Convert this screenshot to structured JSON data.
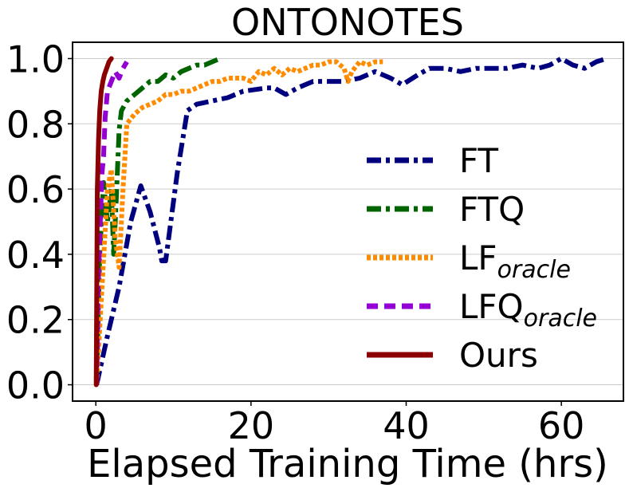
{
  "chart_data": {
    "type": "line",
    "title": "ONTONOTES",
    "xlabel": "Elapsed Training Time (hrs)",
    "ylabel": "",
    "xlim": [
      -3,
      68
    ],
    "ylim": [
      -0.05,
      1.05
    ],
    "x_ticks": [
      0,
      20,
      40,
      60
    ],
    "y_ticks": [
      0.0,
      0.2,
      0.4,
      0.6,
      0.8,
      1.0
    ],
    "x_tick_labels": [
      "0",
      "20",
      "40",
      "60"
    ],
    "y_tick_labels": [
      "0.0",
      "0.2",
      "0.4",
      "0.6",
      "0.8",
      "1.0"
    ],
    "grid": "horizontal",
    "legend_position": "center-right",
    "series": [
      {
        "name": "FT",
        "name_sub": "",
        "color": "#00007f",
        "dash": "dashdot",
        "points": [
          [
            0.1,
            0.0
          ],
          [
            1.5,
            0.15
          ],
          [
            3,
            0.3
          ],
          [
            4.5,
            0.5
          ],
          [
            5.8,
            0.61
          ],
          [
            7,
            0.53
          ],
          [
            8.2,
            0.42
          ],
          [
            8.5,
            0.38
          ],
          [
            9,
            0.38
          ],
          [
            10.5,
            0.65
          ],
          [
            11.8,
            0.84
          ],
          [
            13,
            0.86
          ],
          [
            15,
            0.87
          ],
          [
            17,
            0.88
          ],
          [
            19,
            0.9
          ],
          [
            22,
            0.91
          ],
          [
            23,
            0.91
          ],
          [
            24.5,
            0.89
          ],
          [
            26,
            0.91
          ],
          [
            28,
            0.93
          ],
          [
            30,
            0.93
          ],
          [
            32,
            0.93
          ],
          [
            34,
            0.94
          ],
          [
            36,
            0.96
          ],
          [
            38,
            0.94
          ],
          [
            39.5,
            0.92
          ],
          [
            41.5,
            0.95
          ],
          [
            43,
            0.97
          ],
          [
            45,
            0.97
          ],
          [
            47,
            0.96
          ],
          [
            49,
            0.97
          ],
          [
            51,
            0.97
          ],
          [
            53,
            0.97
          ],
          [
            55,
            0.98
          ],
          [
            57,
            0.97
          ],
          [
            58.5,
            0.98
          ],
          [
            60,
            1.0
          ],
          [
            61.5,
            0.98
          ],
          [
            63,
            0.97
          ],
          [
            64.5,
            0.99
          ],
          [
            65.8,
            1.0
          ]
        ]
      },
      {
        "name": "FTQ",
        "name_sub": "",
        "color": "#006400",
        "dash": "dashdot",
        "points": [
          [
            0.1,
            0.0
          ],
          [
            0.5,
            0.4
          ],
          [
            1,
            0.62
          ],
          [
            1.5,
            0.5
          ],
          [
            2,
            0.6
          ],
          [
            2.3,
            0.4
          ],
          [
            2.6,
            0.55
          ],
          [
            3,
            0.78
          ],
          [
            3.3,
            0.84
          ],
          [
            4,
            0.87
          ],
          [
            5,
            0.89
          ],
          [
            6,
            0.91
          ],
          [
            7,
            0.93
          ],
          [
            8,
            0.93
          ],
          [
            9,
            0.95
          ],
          [
            10,
            0.94
          ],
          [
            11,
            0.96
          ],
          [
            12,
            0.97
          ],
          [
            13,
            0.98
          ],
          [
            14,
            0.98
          ],
          [
            15,
            0.99
          ],
          [
            16,
            1.0
          ]
        ]
      },
      {
        "name": "LF",
        "name_sub": "oracle",
        "color": "#ff8c00",
        "dash": "dot",
        "points": [
          [
            0.1,
            0.0
          ],
          [
            0.8,
            0.3
          ],
          [
            1.5,
            0.6
          ],
          [
            2,
            0.66
          ],
          [
            2.5,
            0.45
          ],
          [
            3,
            0.36
          ],
          [
            3.5,
            0.6
          ],
          [
            4,
            0.8
          ],
          [
            5,
            0.83
          ],
          [
            6,
            0.85
          ],
          [
            7,
            0.86
          ],
          [
            8,
            0.87
          ],
          [
            9,
            0.89
          ],
          [
            10,
            0.89
          ],
          [
            11,
            0.9
          ],
          [
            12,
            0.9
          ],
          [
            13,
            0.91
          ],
          [
            14,
            0.92
          ],
          [
            15,
            0.93
          ],
          [
            16,
            0.93
          ],
          [
            17,
            0.94
          ],
          [
            18,
            0.94
          ],
          [
            19,
            0.94
          ],
          [
            20,
            0.93
          ],
          [
            21,
            0.96
          ],
          [
            22,
            0.95
          ],
          [
            23,
            0.97
          ],
          [
            24,
            0.95
          ],
          [
            25,
            0.97
          ],
          [
            26,
            0.96
          ],
          [
            27,
            0.97
          ],
          [
            28,
            0.98
          ],
          [
            29,
            0.98
          ],
          [
            30,
            0.99
          ],
          [
            31,
            0.99
          ],
          [
            32,
            0.97
          ],
          [
            32.5,
            0.93
          ],
          [
            33,
            0.96
          ],
          [
            34,
            0.99
          ],
          [
            35,
            0.98
          ],
          [
            36,
            0.99
          ],
          [
            37,
            0.99
          ]
        ]
      },
      {
        "name": "LFQ",
        "name_sub": "oracle",
        "color": "#9400d3",
        "dash": "dashed",
        "points": [
          [
            0.1,
            0.0
          ],
          [
            0.3,
            0.3
          ],
          [
            0.5,
            0.45
          ],
          [
            0.8,
            0.65
          ],
          [
            1,
            0.7
          ],
          [
            1.2,
            0.82
          ],
          [
            1.5,
            0.9
          ],
          [
            2,
            0.93
          ],
          [
            2.5,
            0.96
          ],
          [
            3,
            0.94
          ],
          [
            3.5,
            0.97
          ],
          [
            4,
            0.99
          ]
        ]
      },
      {
        "name": "Ours",
        "name_sub": "",
        "color": "#8b0000",
        "dash": "solid",
        "points": [
          [
            0.05,
            0.0
          ],
          [
            0.2,
            0.6
          ],
          [
            0.35,
            0.75
          ],
          [
            0.5,
            0.84
          ],
          [
            0.7,
            0.9
          ],
          [
            0.9,
            0.93
          ],
          [
            1.1,
            0.95
          ],
          [
            1.4,
            0.97
          ],
          [
            1.7,
            0.99
          ],
          [
            2,
            1.0
          ]
        ]
      }
    ]
  }
}
